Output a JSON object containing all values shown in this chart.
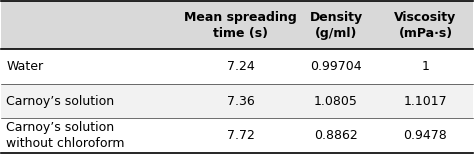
{
  "col_headers": [
    "Mean spreading\ntime (s)",
    "Density\n(g/ml)",
    "Viscosity\n(mPa·s)"
  ],
  "row_labels": [
    "Water",
    "Carnoy’s solution",
    "Carnoy’s solution\nwithout chloroform"
  ],
  "cell_data": [
    [
      "7.24",
      "0.99704",
      "1"
    ],
    [
      "7.36",
      "1.0805",
      "1.1017"
    ],
    [
      "7.72",
      "0.8862",
      "0.9478"
    ]
  ],
  "header_bg": "#d9d9d9",
  "row_bg_odd": "#ffffff",
  "row_bg_even": "#f2f2f2",
  "font_size": 9,
  "header_font_size": 9
}
